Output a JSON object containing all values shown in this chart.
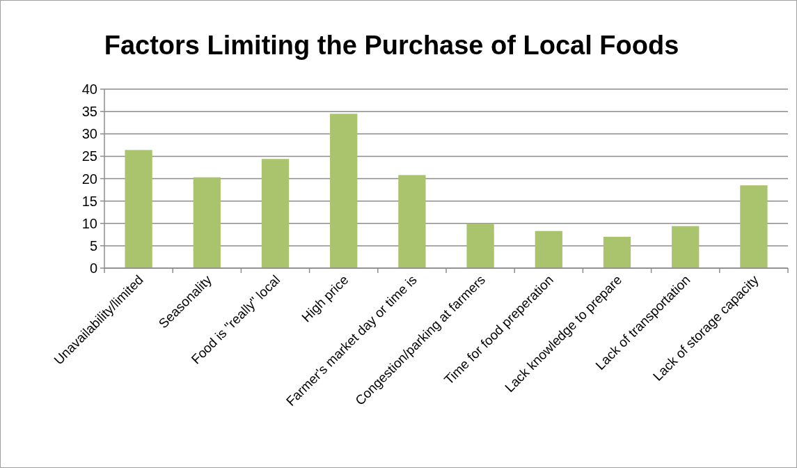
{
  "chart_data": {
    "type": "bar",
    "title": "Factors Limiting the Purchase of Local Foods",
    "categories": [
      "Unavailability/limited",
      "Seasonality",
      "Food is \"really\" local",
      "High price",
      "Farmer's market day or time is",
      "Congestion/parking at farmers",
      "Time for food preperation",
      "Lack knowledge to prepare",
      "Lack of transportation",
      "Lack of storage capacity"
    ],
    "values": [
      26.4,
      20.3,
      24.4,
      34.5,
      20.8,
      10.0,
      8.3,
      7.0,
      9.4,
      18.5
    ],
    "color": "#a9c46c",
    "ylim": [
      0,
      40
    ],
    "yticks": [
      0,
      5,
      10,
      15,
      20,
      25,
      30,
      35,
      40
    ],
    "grid": "y"
  }
}
